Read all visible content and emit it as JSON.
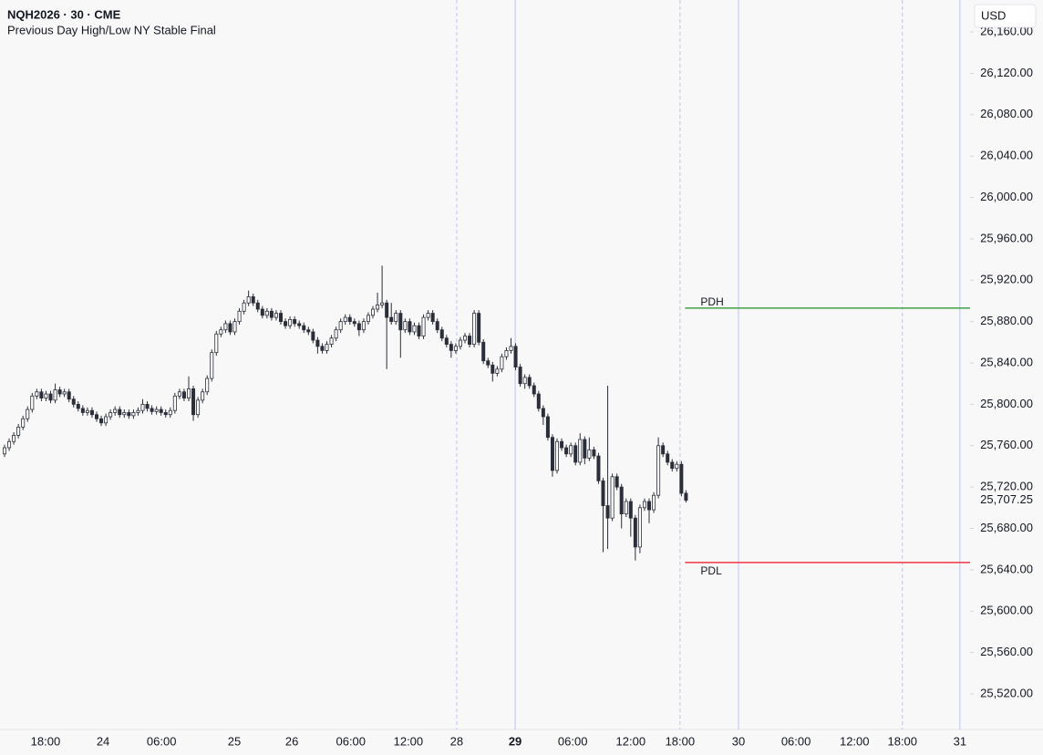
{
  "chart_data": {
    "type": "candlestick",
    "symbol": "NQH2026 · 30 · CME",
    "indicator": "Previous Day High/Low NY Stable Final",
    "currency": "USD",
    "up_color": "#ffffff",
    "down_color": "#2a2e39",
    "border_color": "#2a2e39",
    "categories": [
      null,
      null,
      null,
      null,
      null,
      null,
      null,
      null,
      null,
      null,
      null,
      null,
      null,
      null,
      null,
      null,
      null,
      null,
      null,
      null,
      null,
      null,
      null,
      null,
      null,
      null,
      null,
      null,
      null,
      null,
      null,
      null,
      null,
      null,
      null,
      null,
      null,
      null,
      null,
      null,
      null,
      null,
      null,
      null,
      null,
      null,
      null,
      null,
      null,
      null,
      null,
      null,
      null,
      null,
      null,
      null,
      null,
      null,
      null,
      null,
      null,
      null,
      null,
      null,
      null,
      null,
      null,
      null,
      null,
      null,
      null,
      null,
      null,
      null,
      null,
      null,
      null,
      null,
      null,
      null,
      null,
      null,
      null,
      null,
      null,
      null,
      null,
      null,
      null,
      null,
      null,
      null,
      null,
      null,
      null,
      null,
      null,
      null,
      null,
      null,
      null,
      null,
      null,
      null,
      null,
      null,
      null,
      null,
      null,
      null,
      null,
      null,
      null,
      null,
      null,
      null,
      null,
      null,
      null,
      null,
      null,
      null,
      null,
      null,
      null,
      null,
      null,
      null,
      null,
      null,
      null,
      null,
      null,
      null,
      null,
      null,
      null,
      null,
      null,
      null,
      null,
      null,
      null,
      null,
      null,
      null,
      null,
      null,
      null
    ],
    "open": [
      25752,
      25758,
      25764,
      25770,
      25778,
      25786,
      25795,
      25808,
      25812,
      25806,
      25810,
      25804,
      25814,
      25810,
      25812,
      25805,
      25800,
      25796,
      25792,
      25794,
      25790,
      25786,
      25782,
      25788,
      25792,
      25795,
      25790,
      25792,
      25789,
      25792,
      25794,
      25800,
      25796,
      25793,
      25795,
      25792,
      25790,
      25794,
      25808,
      25812,
      25806,
      25815,
      25790,
      25804,
      25812,
      25825,
      25850,
      25868,
      25872,
      25878,
      25870,
      25880,
      25890,
      25898,
      25904,
      25898,
      25892,
      25886,
      25890,
      25884,
      25888,
      25880,
      25876,
      25882,
      25878,
      25876,
      25872,
      25870,
      25862,
      25856,
      25852,
      25858,
      25864,
      25872,
      25880,
      25884,
      25880,
      25878,
      25872,
      25880,
      25886,
      25892,
      25896,
      25898,
      25884,
      25880,
      25888,
      25872,
      25880,
      25870,
      25876,
      25866,
      25884,
      25888,
      25880,
      25872,
      25864,
      25858,
      25852,
      25856,
      25862,
      25866,
      25858,
      25888,
      25860,
      25842,
      25838,
      25830,
      25834,
      25846,
      25852,
      25856,
      25836,
      25820,
      25826,
      25818,
      25810,
      25796,
      25788,
      25768,
      25736,
      25764,
      25758,
      25752,
      25760,
      25744,
      25766,
      25748,
      25756,
      25750,
      25726,
      25702,
      25690,
      25730,
      25720,
      25694,
      25706,
      25690,
      25662,
      25700,
      25706,
      25698,
      25712,
      25760,
      25752,
      25744,
      25738,
      25742,
      25714
    ],
    "high": [
      25761,
      25767,
      25773,
      25781,
      25789,
      25798,
      25811,
      25815,
      25815,
      25813,
      25813,
      25820,
      25817,
      25815,
      25815,
      25808,
      25803,
      25799,
      25797,
      25797,
      25793,
      25789,
      25791,
      25795,
      25798,
      25798,
      25795,
      25795,
      25795,
      25797,
      25805,
      25803,
      25799,
      25798,
      25798,
      25795,
      25797,
      25811,
      25815,
      25815,
      25827,
      25818,
      25807,
      25815,
      25828,
      25853,
      25871,
      25875,
      25881,
      25881,
      25883,
      25893,
      25901,
      25910,
      25907,
      25901,
      25895,
      25893,
      25893,
      25891,
      25891,
      25883,
      25885,
      25885,
      25881,
      25879,
      25875,
      25873,
      25865,
      25859,
      25861,
      25867,
      25875,
      25883,
      25887,
      25887,
      25883,
      25881,
      25883,
      25889,
      25895,
      25908,
      25934,
      25901,
      25898,
      25891,
      25891,
      25883,
      25883,
      25879,
      25879,
      25887,
      25891,
      25891,
      25883,
      25875,
      25867,
      25861,
      25859,
      25865,
      25869,
      25869,
      25891,
      25891,
      25863,
      25845,
      25841,
      25837,
      25849,
      25855,
      25864,
      25859,
      25839,
      25829,
      25829,
      25821,
      25813,
      25799,
      25791,
      25771,
      25767,
      25767,
      25761,
      25763,
      25763,
      25772,
      25769,
      25768,
      25759,
      25753,
      25729,
      25818,
      25733,
      25733,
      25723,
      25709,
      25709,
      25693,
      25703,
      25709,
      25709,
      25715,
      25768,
      25763,
      25755,
      25747,
      25745,
      25745,
      25717
    ],
    "low": [
      25749,
      25755,
      25761,
      25767,
      25775,
      25783,
      25792,
      25805,
      25803,
      25803,
      25801,
      25801,
      25807,
      25807,
      25802,
      25797,
      25793,
      25789,
      25789,
      25787,
      25783,
      25779,
      25779,
      25785,
      25789,
      25787,
      25787,
      25786,
      25786,
      25789,
      25791,
      25793,
      25790,
      25790,
      25789,
      25787,
      25787,
      25791,
      25805,
      25803,
      25803,
      25784,
      25787,
      25801,
      25809,
      25822,
      25847,
      25865,
      25869,
      25867,
      25867,
      25877,
      25887,
      25895,
      25895,
      25889,
      25883,
      25883,
      25881,
      25881,
      25877,
      25873,
      25873,
      25875,
      25873,
      25869,
      25867,
      25859,
      25849,
      25849,
      25849,
      25855,
      25861,
      25869,
      25877,
      25877,
      25875,
      25866,
      25869,
      25877,
      25883,
      25889,
      25893,
      25834,
      25877,
      25877,
      25845,
      25869,
      25867,
      25867,
      25863,
      25863,
      25881,
      25877,
      25869,
      25861,
      25855,
      25845,
      25849,
      25853,
      25859,
      25855,
      25855,
      25857,
      25839,
      25835,
      25822,
      25827,
      25831,
      25843,
      25849,
      25833,
      25817,
      25815,
      25815,
      25807,
      25793,
      25780,
      25765,
      25730,
      25733,
      25755,
      25749,
      25749,
      25741,
      25741,
      25742,
      25745,
      25747,
      25723,
      25657,
      25660,
      25687,
      25717,
      25680,
      25691,
      25672,
      25649,
      25656,
      25697,
      25685,
      25695,
      25709,
      25749,
      25741,
      25735,
      25735,
      25711,
      25705
    ],
    "close": [
      25758,
      25764,
      25770,
      25778,
      25786,
      25795,
      25808,
      25812,
      25806,
      25810,
      25804,
      25814,
      25810,
      25812,
      25805,
      25800,
      25796,
      25792,
      25794,
      25790,
      25786,
      25782,
      25788,
      25792,
      25795,
      25790,
      25792,
      25789,
      25792,
      25794,
      25800,
      25796,
      25793,
      25795,
      25792,
      25790,
      25794,
      25808,
      25812,
      25806,
      25815,
      25790,
      25804,
      25812,
      25825,
      25850,
      25868,
      25872,
      25878,
      25870,
      25880,
      25890,
      25898,
      25904,
      25898,
      25892,
      25886,
      25890,
      25884,
      25888,
      25880,
      25876,
      25882,
      25878,
      25876,
      25872,
      25870,
      25862,
      25856,
      25852,
      25858,
      25864,
      25872,
      25880,
      25884,
      25880,
      25878,
      25872,
      25880,
      25886,
      25892,
      25896,
      25898,
      25884,
      25880,
      25888,
      25872,
      25880,
      25870,
      25876,
      25866,
      25884,
      25888,
      25880,
      25872,
      25864,
      25858,
      25852,
      25856,
      25862,
      25866,
      25858,
      25888,
      25860,
      25842,
      25838,
      25830,
      25834,
      25846,
      25852,
      25856,
      25836,
      25820,
      25826,
      25818,
      25810,
      25796,
      25788,
      25768,
      25736,
      25764,
      25758,
      25752,
      25760,
      25744,
      25766,
      25748,
      25756,
      25750,
      25726,
      25702,
      25690,
      25730,
      25720,
      25694,
      25706,
      25690,
      25662,
      25700,
      25706,
      25698,
      25712,
      25760,
      25752,
      25744,
      25738,
      25742,
      25714,
      25707.25
    ],
    "xlim": [
      -0.99,
      209.7
    ],
    "xticks": [
      {
        "value": 8.9,
        "label": "18:00"
      },
      {
        "value": 21.4,
        "label": "24"
      },
      {
        "value": 34.1,
        "label": "06:00"
      },
      {
        "value": 49.9,
        "label": "25"
      },
      {
        "value": 62.4,
        "label": "26"
      },
      {
        "value": 75.2,
        "label": "06:00"
      },
      {
        "value": 87.7,
        "label": "12:00"
      },
      {
        "value": 98.2,
        "label": "28",
        "line": "dashed"
      },
      {
        "value": 110.9,
        "label": "29",
        "line": "solid",
        "bold": true
      },
      {
        "value": 123.4,
        "label": "06:00"
      },
      {
        "value": 136.0,
        "label": "12:00"
      },
      {
        "value": 146.7,
        "label": "18:00",
        "line": "dashed"
      },
      {
        "value": 159.4,
        "label": "30",
        "line": "solid"
      },
      {
        "value": 171.9,
        "label": "06:00"
      },
      {
        "value": 184.6,
        "label": "12:00"
      },
      {
        "value": 195.0,
        "label": "18:00",
        "line": "dashed"
      },
      {
        "value": 207.5,
        "label": "31",
        "line": "solid"
      }
    ],
    "ylim": [
      25485.6,
      26190.9
    ],
    "yticks": [
      {
        "value": 25520,
        "label": "25,520.00"
      },
      {
        "value": 25560,
        "label": "25,560.00"
      },
      {
        "value": 25600,
        "label": "25,600.00"
      },
      {
        "value": 25640,
        "label": "25,640.00"
      },
      {
        "value": 25680,
        "label": "25,680.00"
      },
      {
        "value": 25720,
        "label": "25,720.00"
      },
      {
        "value": 25760,
        "label": "25,760.00"
      },
      {
        "value": 25800,
        "label": "25,800.00"
      },
      {
        "value": 25840,
        "label": "25,840.00"
      },
      {
        "value": 25880,
        "label": "25,880.00"
      },
      {
        "value": 25920,
        "label": "25,920.00"
      },
      {
        "value": 25960,
        "label": "25,960.00"
      },
      {
        "value": 26000,
        "label": "26,000.00"
      },
      {
        "value": 26040,
        "label": "26,040.00"
      },
      {
        "value": 26080,
        "label": "26,080.00"
      },
      {
        "value": 26120,
        "label": "26,120.00"
      },
      {
        "value": 26160,
        "label": "26,160.00"
      }
    ],
    "last_price": {
      "value": 25707.25,
      "label": "25,707.25"
    },
    "levels": [
      {
        "name": "PDH",
        "value": 25893,
        "color": "#43a047",
        "label_side": "above"
      },
      {
        "name": "PDL",
        "value": 25647,
        "color": "#f23645",
        "label_side": "below"
      }
    ]
  }
}
